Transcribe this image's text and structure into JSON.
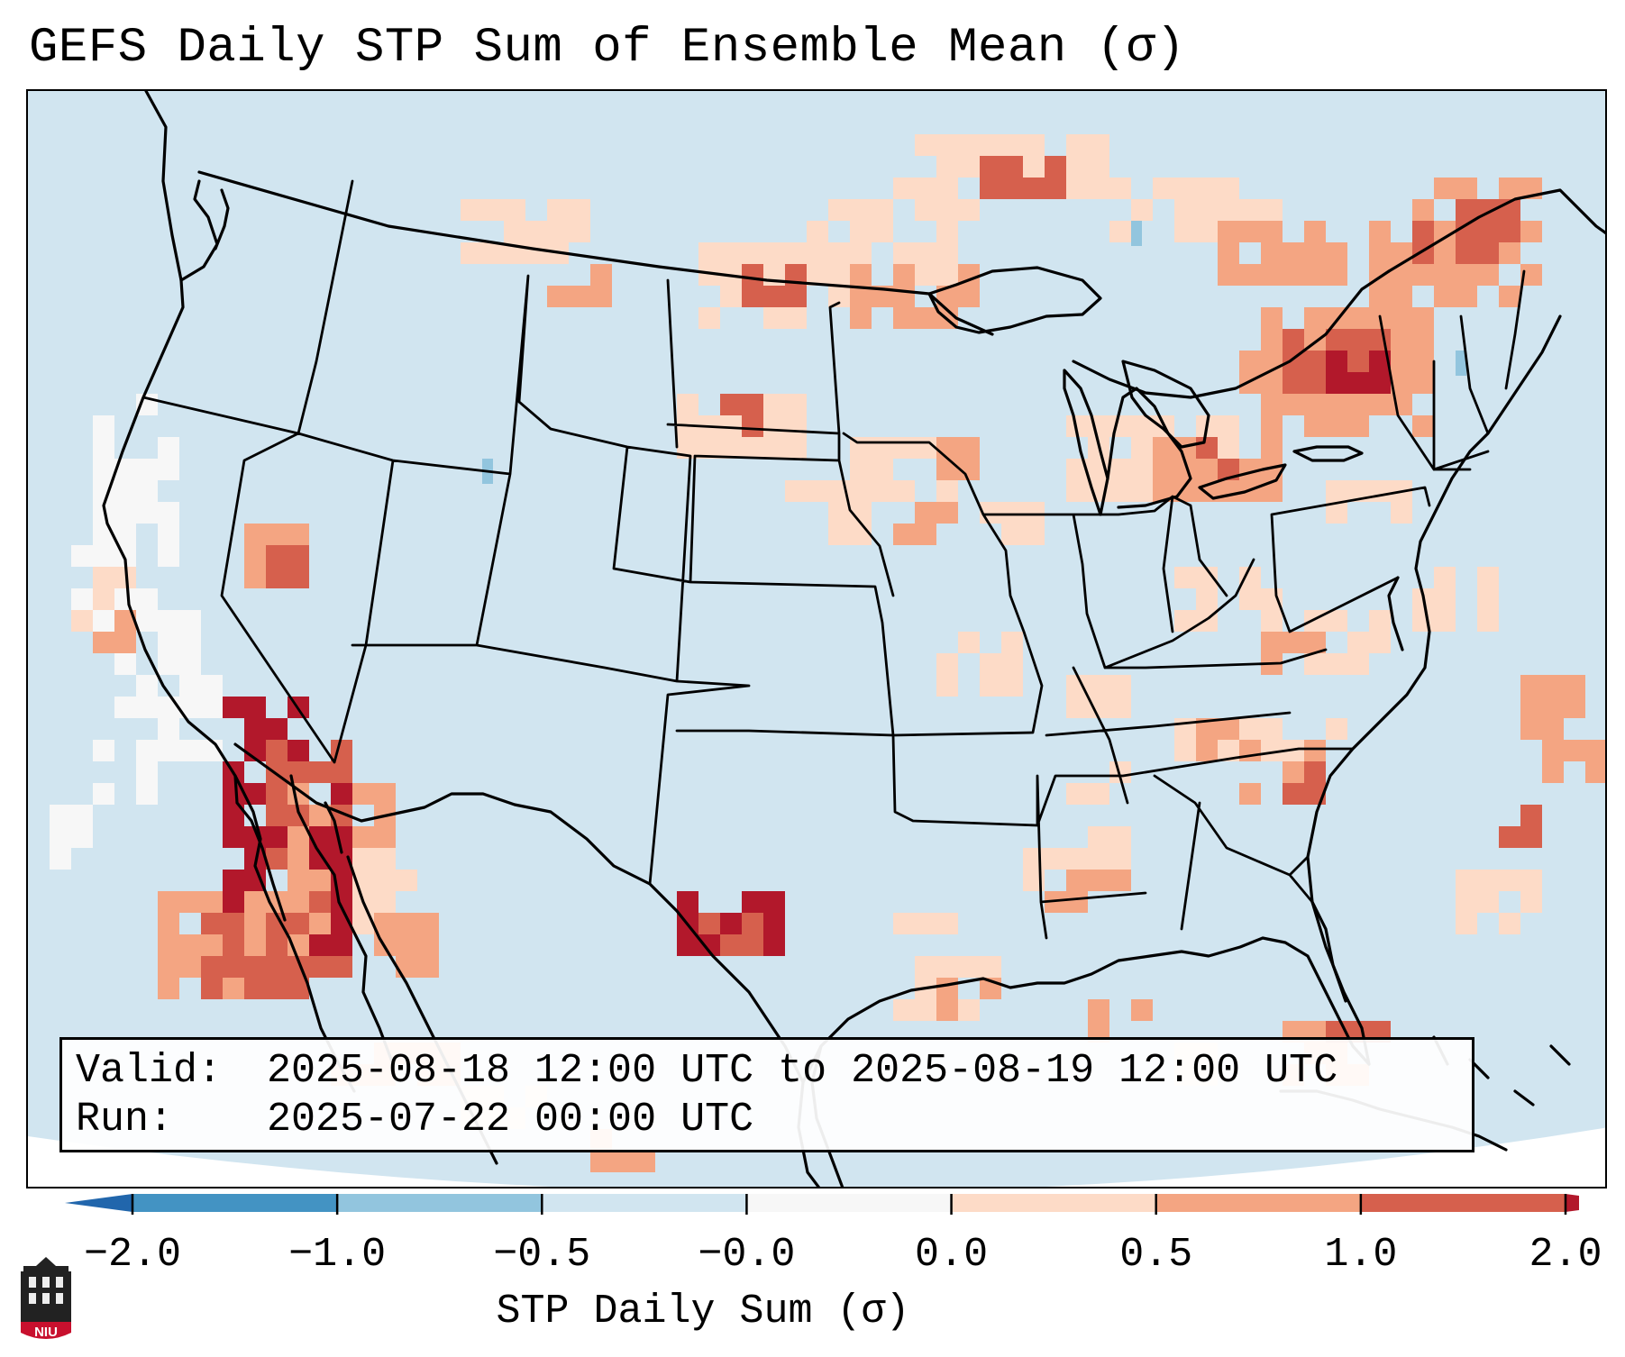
{
  "title": "GEFS Daily STP Sum of Ensemble Mean (σ)",
  "map": {
    "projection": "Lambert Conformal, CONUS",
    "ocean_color": "#d1e5f0",
    "land_color": "#d1e5f0",
    "boundary_color": "#000000"
  },
  "info": {
    "valid_key": "Valid:",
    "valid_value": "2025-08-18 12:00 UTC to 2025-08-19 12:00 UTC",
    "run_key": "Run:",
    "run_value": "2025-07-22 00:00 UTC"
  },
  "colorbar": {
    "label": "STP Daily Sum (σ)",
    "ticks": [
      "−2.0",
      "−1.0",
      "−0.5",
      "−0.0",
      "0.0",
      "0.5",
      "1.0",
      "2.0"
    ],
    "bins": [
      {
        "from": "-2.0",
        "to": "-1.0",
        "color": "#4393c3"
      },
      {
        "from": "-1.0",
        "to": "-0.5",
        "color": "#92c5de"
      },
      {
        "from": "-0.5",
        "to": "-0.0",
        "color": "#d1e5f0"
      },
      {
        "from": "-0.0",
        "to": "0.0",
        "color": "#f7f7f7"
      },
      {
        "from": "0.0",
        "to": "0.5",
        "color": "#fddbc7"
      },
      {
        "from": "0.5",
        "to": "1.0",
        "color": "#f4a582"
      },
      {
        "from": "1.0",
        "to": "2.0",
        "color": "#d6604d"
      }
    ],
    "under_color": "#2166ac",
    "over_color": "#b2182b"
  },
  "logo": {
    "text": "NIU",
    "icon": "university-tower-icon"
  }
}
